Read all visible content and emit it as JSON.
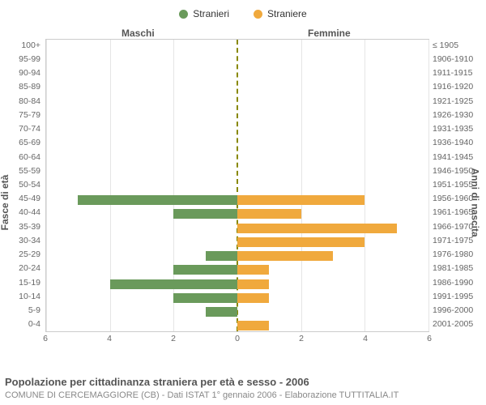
{
  "chart": {
    "type": "population-pyramid",
    "legend": [
      {
        "label": "Stranieri",
        "color": "#6a9a5b"
      },
      {
        "label": "Straniere",
        "color": "#f0a93d"
      }
    ],
    "header_left": "Maschi",
    "header_right": "Femmine",
    "axis_left_title": "Fasce di età",
    "axis_right_title": "Anni di nascita",
    "x_max": 6,
    "x_ticks_left": [
      6,
      4,
      2,
      0
    ],
    "x_ticks_right": [
      0,
      2,
      4,
      6
    ],
    "x_ticks": [
      "6",
      "4",
      "2",
      "0",
      "2",
      "4",
      "6"
    ],
    "grid_color": "#e5e5e5",
    "border_color": "#cccccc",
    "center_line_color": "#888800",
    "bar_color_left": "#6a9a5b",
    "bar_color_right": "#f0a93d",
    "background": "#ffffff",
    "label_fontsize": 10.5,
    "rows": [
      {
        "age": "100+",
        "birth": "≤ 1905",
        "m": 0,
        "f": 0
      },
      {
        "age": "95-99",
        "birth": "1906-1910",
        "m": 0,
        "f": 0
      },
      {
        "age": "90-94",
        "birth": "1911-1915",
        "m": 0,
        "f": 0
      },
      {
        "age": "85-89",
        "birth": "1916-1920",
        "m": 0,
        "f": 0
      },
      {
        "age": "80-84",
        "birth": "1921-1925",
        "m": 0,
        "f": 0
      },
      {
        "age": "75-79",
        "birth": "1926-1930",
        "m": 0,
        "f": 0
      },
      {
        "age": "70-74",
        "birth": "1931-1935",
        "m": 0,
        "f": 0
      },
      {
        "age": "65-69",
        "birth": "1936-1940",
        "m": 0,
        "f": 0
      },
      {
        "age": "60-64",
        "birth": "1941-1945",
        "m": 0,
        "f": 0
      },
      {
        "age": "55-59",
        "birth": "1946-1950",
        "m": 0,
        "f": 0
      },
      {
        "age": "50-54",
        "birth": "1951-1955",
        "m": 0,
        "f": 0
      },
      {
        "age": "45-49",
        "birth": "1956-1960",
        "m": 5,
        "f": 4
      },
      {
        "age": "40-44",
        "birth": "1961-1965",
        "m": 2,
        "f": 2
      },
      {
        "age": "35-39",
        "birth": "1966-1970",
        "m": 0,
        "f": 5
      },
      {
        "age": "30-34",
        "birth": "1971-1975",
        "m": 0,
        "f": 4
      },
      {
        "age": "25-29",
        "birth": "1976-1980",
        "m": 1,
        "f": 3
      },
      {
        "age": "20-24",
        "birth": "1981-1985",
        "m": 2,
        "f": 1
      },
      {
        "age": "15-19",
        "birth": "1986-1990",
        "m": 4,
        "f": 1
      },
      {
        "age": "10-14",
        "birth": "1991-1995",
        "m": 2,
        "f": 1
      },
      {
        "age": "5-9",
        "birth": "1996-2000",
        "m": 1,
        "f": 0
      },
      {
        "age": "0-4",
        "birth": "2001-2005",
        "m": 0,
        "f": 1
      }
    ]
  },
  "footer": {
    "title": "Popolazione per cittadinanza straniera per età e sesso - 2006",
    "subtitle": "COMUNE DI CERCEMAGGIORE (CB) - Dati ISTAT 1° gennaio 2006 - Elaborazione TUTTITALIA.IT"
  }
}
